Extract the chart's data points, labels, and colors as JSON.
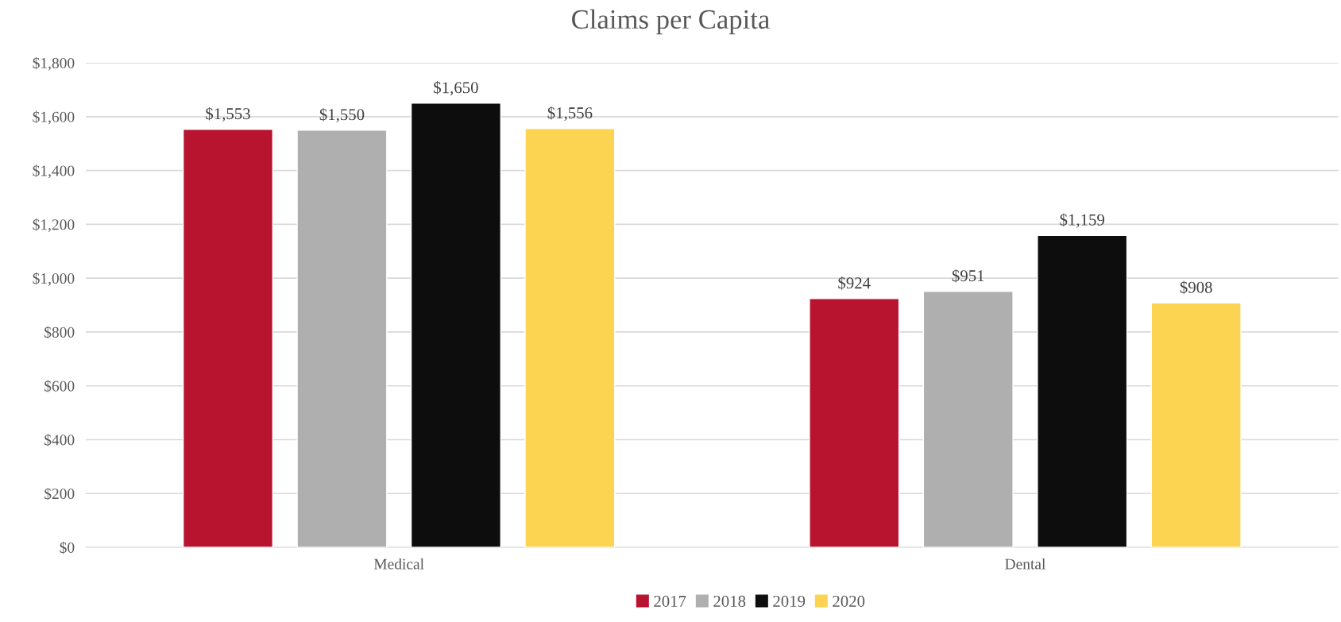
{
  "chart_data": {
    "type": "bar",
    "title": "Claims per Capita",
    "categories": [
      "Medical",
      "Dental"
    ],
    "series": [
      {
        "name": "2017",
        "color": "#b8132f",
        "values": [
          1553,
          924
        ],
        "value_labels": [
          "$1,553",
          "$924"
        ]
      },
      {
        "name": "2018",
        "color": "#afafaf",
        "values": [
          1550,
          951
        ],
        "value_labels": [
          "$1,550",
          "$951"
        ]
      },
      {
        "name": "2019",
        "color": "#0d0d0d",
        "values": [
          1650,
          1159
        ],
        "value_labels": [
          "$1,650",
          "$1,159"
        ]
      },
      {
        "name": "2020",
        "color": "#fdd451",
        "values": [
          1556,
          908
        ],
        "value_labels": [
          "$1,556",
          "$908"
        ]
      }
    ],
    "ylim": [
      0,
      1800
    ],
    "yticks": [
      {
        "value": 0,
        "label": "$0"
      },
      {
        "value": 200,
        "label": "$200"
      },
      {
        "value": 400,
        "label": "$400"
      },
      {
        "value": 600,
        "label": "$600"
      },
      {
        "value": 800,
        "label": "$800"
      },
      {
        "value": 1000,
        "label": "$1,000"
      },
      {
        "value": 1200,
        "label": "$1,200"
      },
      {
        "value": 1400,
        "label": "$1,400"
      },
      {
        "value": 1600,
        "label": "$1,600"
      },
      {
        "value": 1800,
        "label": "$1,800"
      }
    ],
    "grid": "y",
    "legend": "bottom"
  }
}
